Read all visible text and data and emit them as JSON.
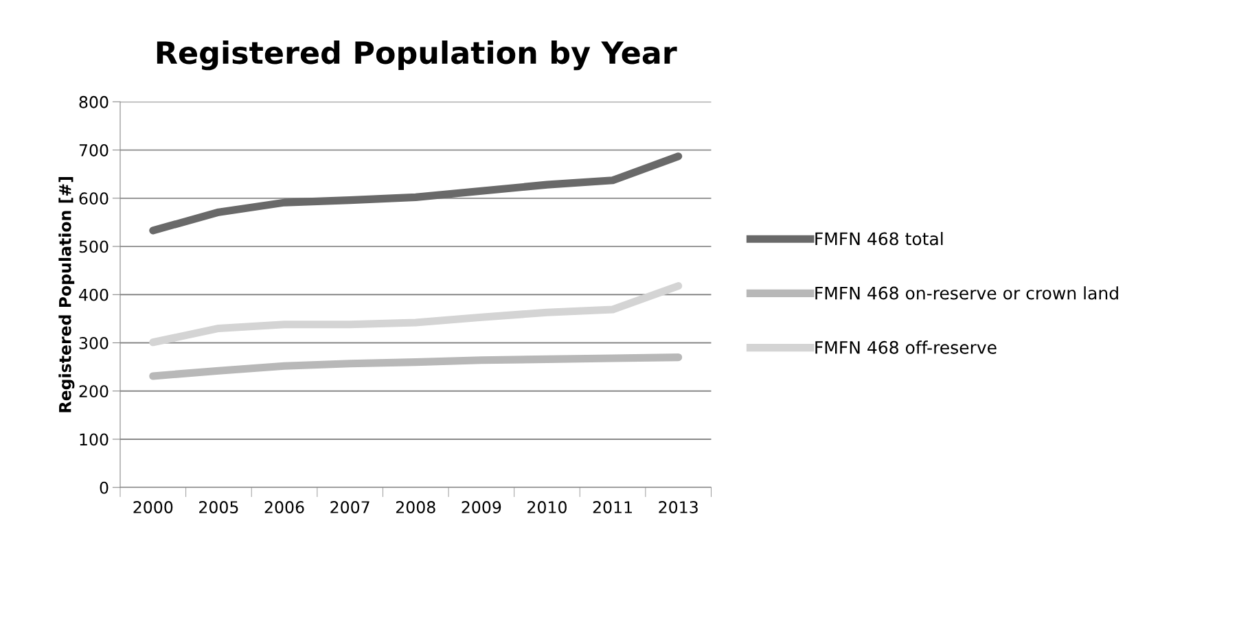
{
  "chart_data": {
    "type": "line",
    "title": "Registered Population by Year",
    "ylabel": "Registered Population [#]",
    "categories": [
      "2000",
      "2005",
      "2006",
      "2007",
      "2008",
      "2009",
      "2010",
      "2011",
      "2013"
    ],
    "series": [
      {
        "name": "FMFN 468 total",
        "color": "#696969",
        "values": [
          533,
          571,
          591,
          596,
          602,
          615,
          628,
          637,
          687
        ]
      },
      {
        "name": "FMFN 468 on-reserve or crown land",
        "color": "#b8b8b8",
        "values": [
          231,
          242,
          252,
          257,
          260,
          264,
          266,
          268,
          270
        ]
      },
      {
        "name": "FMFN 468 off-reserve",
        "color": "#d4d4d4",
        "values": [
          301,
          330,
          338,
          338,
          342,
          353,
          363,
          369,
          418
        ]
      }
    ],
    "ylim": [
      0,
      800
    ],
    "yticks": [
      0,
      100,
      200,
      300,
      400,
      500,
      600,
      700,
      800
    ],
    "grid": "y",
    "legend": "right",
    "marker": "none",
    "line_style": "solid"
  }
}
